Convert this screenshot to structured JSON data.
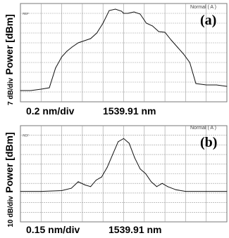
{
  "chart_data": [
    {
      "type": "line",
      "panel_label": "(a)",
      "mode_text": "Normal ( A )",
      "ref_label": "REF",
      "ylabel": "Power [dBm]",
      "yscale_label": "7 dB/div",
      "xscale_label": "0.2 nm/div",
      "center_label": "1539.91 nm",
      "grid": true,
      "x": [
        -1.0,
        -0.9,
        -0.8,
        -0.72,
        -0.66,
        -0.6,
        -0.55,
        -0.5,
        -0.44,
        -0.38,
        -0.32,
        -0.26,
        -0.2,
        -0.14,
        -0.08,
        -0.02,
        0.0,
        0.04,
        0.1,
        0.16,
        0.22,
        0.28,
        0.34,
        0.4,
        0.46,
        0.52,
        0.58,
        0.64,
        0.7,
        0.8,
        0.9,
        1.0
      ],
      "y": [
        -62.0,
        -62.0,
        -61.0,
        -60.0,
        -46.0,
        -38.0,
        -34.0,
        -31.0,
        -28.0,
        -26.5,
        -25.0,
        -21.0,
        -14.0,
        -5.0,
        -4.0,
        -5.5,
        -7.0,
        -7.0,
        -6.0,
        -7.5,
        -14.0,
        -16.0,
        -20.0,
        -20.5,
        -26.0,
        -31.0,
        -36.0,
        -42.0,
        -57.0,
        -58.0,
        -58.0,
        -59.0
      ],
      "ylim": [
        -70,
        0
      ]
    },
    {
      "type": "line",
      "panel_label": "(b)",
      "mode_text": "Normal ( A )",
      "ref_label": "REF",
      "ylabel": "Power [dBm]",
      "yscale_label": "10 dB/div",
      "xscale_label": "0.15 nm/div",
      "center_label": "1539.91 nm",
      "grid": true,
      "x": [
        -0.75,
        -0.6,
        -0.45,
        -0.38,
        -0.33,
        -0.28,
        -0.24,
        -0.2,
        -0.16,
        -0.12,
        -0.08,
        -0.04,
        0.0,
        0.04,
        0.08,
        0.12,
        0.16,
        0.2,
        0.24,
        0.28,
        0.32,
        0.38,
        0.45,
        0.6,
        0.75
      ],
      "y": [
        -61.0,
        -61.0,
        -60.5,
        -59.0,
        -55.0,
        -57.0,
        -58.0,
        -54.0,
        -52.0,
        -46.0,
        -38.0,
        -30.0,
        -28.0,
        -31.0,
        -40.0,
        -47.0,
        -50.0,
        -55.0,
        -58.0,
        -56.0,
        -58.0,
        -60.0,
        -61.0,
        -61.0,
        -61.0
      ],
      "ylim": [
        -80,
        -20
      ]
    }
  ]
}
